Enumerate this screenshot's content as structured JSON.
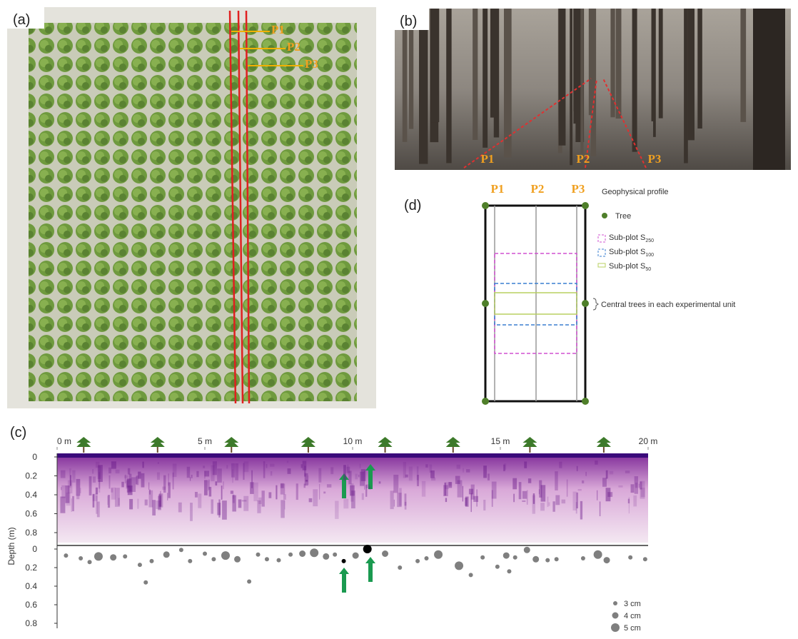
{
  "panels": {
    "a": {
      "label": "(a)",
      "profiles": [
        "P1",
        "P2",
        "P3"
      ]
    },
    "b": {
      "label": "(b)",
      "profiles": [
        "P1",
        "P2",
        "P3"
      ]
    },
    "d": {
      "label": "(d)",
      "profiles": [
        "P1",
        "P2",
        "P3"
      ],
      "legend": {
        "profile": "Geophysical profile",
        "tree": "Tree",
        "subplots": [
          {
            "text": "Sub-plot S",
            "subscript": "250",
            "color": "#d050d0"
          },
          {
            "text": "Sub-plot S",
            "subscript": "100",
            "color": "#3a7fd0"
          },
          {
            "text": "Sub-plot S",
            "subscript": "50",
            "color": "#b8d060"
          }
        ],
        "central": "Central trees in each experimental unit"
      }
    },
    "c": {
      "label": "(c)",
      "y_label": "Depth (m)",
      "xticks": [
        {
          "value": 0,
          "label": "0 m"
        },
        {
          "value": 5,
          "label": "5 m"
        },
        {
          "value": 10,
          "label": "10 m"
        },
        {
          "value": 15,
          "label": "15 m"
        },
        {
          "value": 20,
          "label": "20 m"
        }
      ],
      "xlim": [
        0,
        20
      ],
      "ylim": [
        0,
        0.8
      ],
      "yticks": [
        0,
        0.2,
        0.4,
        0.6,
        0.8
      ],
      "trees_m": [
        0.9,
        3.4,
        5.9,
        8.5,
        11.1,
        13.4,
        16.0,
        18.5
      ],
      "root_color": "#7f7f7f",
      "highlight_color": "#000000",
      "highlighted_roots": [
        25,
        27
      ],
      "roots": [
        [
          0.3,
          0.07,
          3
        ],
        [
          0.8,
          0.1,
          3
        ],
        [
          1.1,
          0.14,
          3
        ],
        [
          1.4,
          0.08,
          5
        ],
        [
          1.9,
          0.09,
          4
        ],
        [
          2.3,
          0.08,
          3
        ],
        [
          2.8,
          0.17,
          3
        ],
        [
          3.0,
          0.36,
          3
        ],
        [
          3.2,
          0.13,
          3
        ],
        [
          3.7,
          0.06,
          4
        ],
        [
          4.2,
          0.01,
          3
        ],
        [
          4.5,
          0.13,
          3
        ],
        [
          5.0,
          0.05,
          3
        ],
        [
          5.3,
          0.11,
          3
        ],
        [
          5.7,
          0.07,
          5
        ],
        [
          6.1,
          0.11,
          4
        ],
        [
          6.5,
          0.35,
          3
        ],
        [
          6.8,
          0.06,
          3
        ],
        [
          7.1,
          0.11,
          3
        ],
        [
          7.5,
          0.12,
          3
        ],
        [
          7.9,
          0.06,
          3
        ],
        [
          8.3,
          0.05,
          4
        ],
        [
          8.7,
          0.04,
          5
        ],
        [
          9.1,
          0.08,
          4
        ],
        [
          9.4,
          0.06,
          3
        ],
        [
          9.7,
          0.13,
          3
        ],
        [
          10.1,
          0.07,
          4
        ],
        [
          10.5,
          0.0,
          5
        ],
        [
          11.1,
          0.05,
          4
        ],
        [
          11.6,
          0.2,
          3
        ],
        [
          12.2,
          0.13,
          3
        ],
        [
          12.5,
          0.1,
          3
        ],
        [
          12.9,
          0.06,
          5
        ],
        [
          13.6,
          0.18,
          5
        ],
        [
          14.0,
          0.28,
          3
        ],
        [
          14.4,
          0.09,
          3
        ],
        [
          14.9,
          0.19,
          3
        ],
        [
          15.2,
          0.07,
          4
        ],
        [
          15.3,
          0.24,
          3
        ],
        [
          15.5,
          0.09,
          3
        ],
        [
          15.9,
          0.01,
          4
        ],
        [
          16.2,
          0.11,
          4
        ],
        [
          16.6,
          0.12,
          3
        ],
        [
          16.9,
          0.11,
          3
        ],
        [
          17.8,
          0.1,
          3
        ],
        [
          18.3,
          0.06,
          5
        ],
        [
          18.6,
          0.12,
          4
        ],
        [
          19.4,
          0.09,
          3
        ],
        [
          19.9,
          0.11,
          3
        ]
      ],
      "size_legend": [
        {
          "value": 3,
          "label": "3 cm"
        },
        {
          "value": 4,
          "label": "4 cm"
        },
        {
          "value": 5,
          "label": "5 cm"
        }
      ]
    }
  }
}
